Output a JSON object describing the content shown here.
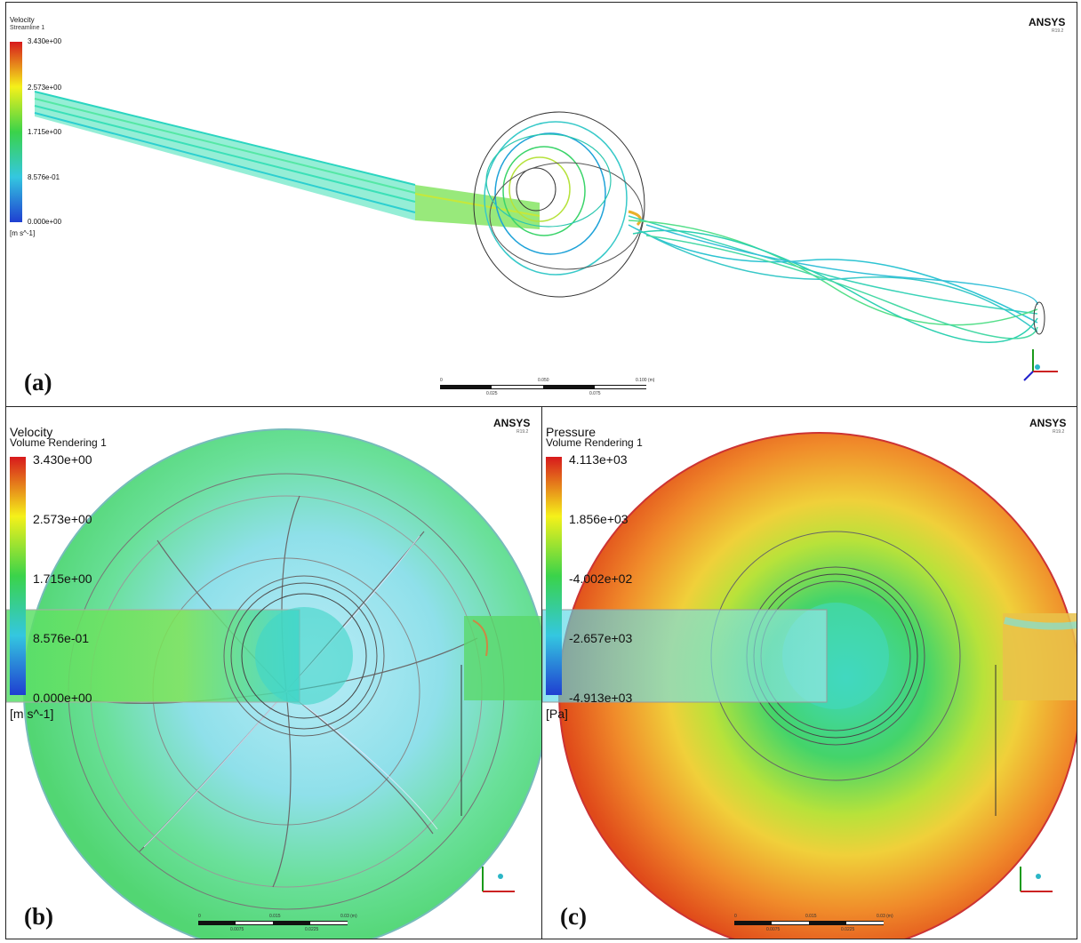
{
  "brand": {
    "name": "ANSYS",
    "version": "R19.2"
  },
  "panels": {
    "a": {
      "label": "(a)",
      "legend": {
        "quantity": "Velocity",
        "object": "Streamline 1",
        "ticks": [
          "3.430e+00",
          "2.573e+00",
          "1.715e+00",
          "8.576e-01",
          "0.000e+00"
        ],
        "unit": "[m s^-1]",
        "colors": [
          "#d7191c",
          "#f5f11a",
          "#3ad34a",
          "#34c7e0",
          "#1f3fd1"
        ]
      },
      "scalebar": {
        "ticks": [
          "0",
          "0.050",
          "0.100 (m)"
        ],
        "minor": [
          "0.025",
          "0.075"
        ]
      }
    },
    "b": {
      "label": "(b)",
      "legend": {
        "quantity": "Velocity",
        "object": "Volume Rendering 1",
        "ticks": [
          "3.430e+00",
          "2.573e+00",
          "1.715e+00",
          "8.576e-01",
          "0.000e+00"
        ],
        "unit": "[m s^-1]",
        "colors": [
          "#d7191c",
          "#f5f11a",
          "#3ad34a",
          "#34c7e0",
          "#1f3fd1"
        ]
      },
      "scalebar": {
        "ticks": [
          "0",
          "0.015",
          "0.03 (m)"
        ],
        "minor": [
          "0.0075",
          "0.0225"
        ]
      }
    },
    "c": {
      "label": "(c)",
      "legend": {
        "quantity": "Pressure",
        "object": "Volume Rendering 1",
        "ticks": [
          "4.113e+03",
          "1.856e+03",
          "-4.002e+02",
          "-2.657e+03",
          "-4.913e+03"
        ],
        "unit": "[Pa]",
        "colors": [
          "#d7191c",
          "#f5f11a",
          "#3ad34a",
          "#34c7e0",
          "#1f3fd1"
        ]
      },
      "scalebar": {
        "ticks": [
          "0",
          "0.015",
          "0.03 (m)"
        ],
        "minor": [
          "0.0075",
          "0.0225"
        ]
      }
    }
  }
}
